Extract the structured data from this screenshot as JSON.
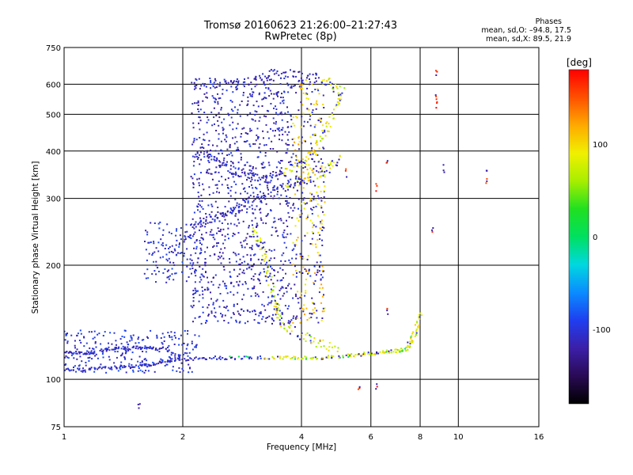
{
  "header": {
    "title": "Tromsø 20160623 21:26:00–21:27:43",
    "subtitle": "RwPretec (8p)",
    "stats_title": "Phases",
    "stats_o": "mean, sd,O: –94.8, 17.5",
    "stats_x": "mean, sd,X:  89.5, 21.9"
  },
  "colorbar": {
    "unit_label": "[deg]",
    "ticks": [
      {
        "value": 100,
        "label": "100"
      },
      {
        "value": 0,
        "label": "0"
      },
      {
        "value": -100,
        "label": "-100"
      }
    ],
    "range": [
      -180,
      180
    ],
    "colors": [
      "#000000",
      "#2a0a55",
      "#3b1fa8",
      "#1f3ef0",
      "#0a8cff",
      "#00d8e0",
      "#00e060",
      "#20e020",
      "#a8ee00",
      "#f0f000",
      "#ffaa00",
      "#ff5000",
      "#ff0000"
    ]
  },
  "chart_data": {
    "type": "scatter",
    "title": "Tromsø 20160623 21:26:00–21:27:43",
    "subtitle": "RwPretec (8p)",
    "xlabel": "Frequency [MHz]",
    "ylabel": "Stationary phase Virtual Height [km]",
    "xscale": "log",
    "yscale": "log",
    "xlim": [
      1,
      16
    ],
    "ylim": [
      75,
      750
    ],
    "xticks": [
      {
        "v": 1,
        "l": "1"
      },
      {
        "v": 2,
        "l": "2"
      },
      {
        "v": 4,
        "l": "4"
      },
      {
        "v": 6,
        "l": "6"
      },
      {
        "v": 8,
        "l": "8"
      },
      {
        "v": 10,
        "l": "10"
      },
      {
        "v": 16,
        "l": "16"
      }
    ],
    "yticks": [
      {
        "v": 75,
        "l": "75"
      },
      {
        "v": 100,
        "l": "100"
      },
      {
        "v": 200,
        "l": "200"
      },
      {
        "v": 300,
        "l": "300"
      },
      {
        "v": 400,
        "l": "400"
      },
      {
        "v": 500,
        "l": "500"
      },
      {
        "v": 600,
        "l": "600"
      },
      {
        "v": 750,
        "l": "750"
      }
    ],
    "grid": true,
    "color_variable": "phase [deg]",
    "series": [
      {
        "values": [
          [
            1.0,
            106
          ],
          [
            1.12,
            106
          ],
          [
            1.25,
            107
          ],
          [
            1.4,
            108
          ],
          [
            1.55,
            108
          ],
          [
            1.7,
            110
          ],
          [
            1.85,
            112
          ],
          [
            2.0,
            113
          ],
          [
            2.3,
            114
          ],
          [
            2.6,
            114
          ],
          [
            3.0,
            114
          ],
          [
            3.5,
            114
          ],
          [
            4.0,
            114
          ],
          [
            4.5,
            114
          ],
          [
            5.0,
            115
          ],
          [
            5.5,
            116
          ],
          [
            6.0,
            117
          ],
          [
            6.5,
            118
          ],
          [
            7.0,
            119
          ],
          [
            7.3,
            120
          ],
          [
            7.6,
            125
          ],
          [
            7.8,
            135
          ],
          [
            8.0,
            150
          ]
        ]
      },
      {
        "values": [
          [
            1.0,
            118
          ],
          [
            1.1,
            117
          ],
          [
            1.2,
            118
          ],
          [
            1.35,
            121
          ],
          [
            1.5,
            121
          ],
          [
            1.65,
            121
          ],
          [
            1.8,
            120
          ],
          [
            2.0,
            114
          ]
        ]
      },
      {
        "values": [
          [
            1.8,
            210
          ],
          [
            2.0,
            235
          ],
          [
            2.2,
            255
          ],
          [
            2.4,
            265
          ],
          [
            2.6,
            275
          ],
          [
            2.8,
            285
          ],
          [
            3.0,
            295
          ],
          [
            3.3,
            305
          ],
          [
            3.6,
            320
          ],
          [
            4.0,
            335
          ],
          [
            4.4,
            345
          ],
          [
            4.7,
            360
          ],
          [
            5.0,
            380
          ]
        ]
      },
      {
        "values": [
          [
            2.2,
            400
          ],
          [
            2.4,
            380
          ],
          [
            2.6,
            360
          ],
          [
            2.8,
            350
          ],
          [
            3.0,
            345
          ],
          [
            3.3,
            340
          ],
          [
            3.6,
            350
          ],
          [
            4.0,
            370
          ],
          [
            4.3,
            400
          ],
          [
            4.6,
            450
          ],
          [
            4.9,
            520
          ],
          [
            5.1,
            580
          ]
        ]
      },
      {
        "values": [
          [
            2.2,
            610
          ],
          [
            2.5,
            600
          ],
          [
            3.0,
            610
          ],
          [
            3.3,
            635
          ],
          [
            3.6,
            640
          ],
          [
            4.0,
            630
          ],
          [
            4.4,
            620
          ],
          [
            4.8,
            600
          ],
          [
            5.0,
            570
          ]
        ]
      },
      {
        "values": [
          [
            3.0,
            250
          ],
          [
            3.2,
            220
          ],
          [
            3.3,
            190
          ],
          [
            3.4,
            160
          ],
          [
            3.5,
            150
          ],
          [
            3.6,
            140
          ],
          [
            4.0,
            130
          ],
          [
            4.4,
            125
          ],
          [
            5.0,
            120
          ]
        ]
      },
      {
        "values": [
          [
            8.8,
            650
          ],
          [
            8.8,
            560
          ],
          [
            8.8,
            530
          ],
          [
            9.2,
            360
          ],
          [
            11.8,
            330
          ],
          [
            11.8,
            360
          ],
          [
            8.6,
            250
          ],
          [
            5.2,
            350
          ],
          [
            6.2,
            320
          ],
          [
            6.6,
            380
          ],
          [
            5.6,
            95
          ],
          [
            6.2,
            95
          ],
          [
            6.6,
            150
          ],
          [
            1.55,
            86
          ]
        ]
      }
    ]
  }
}
